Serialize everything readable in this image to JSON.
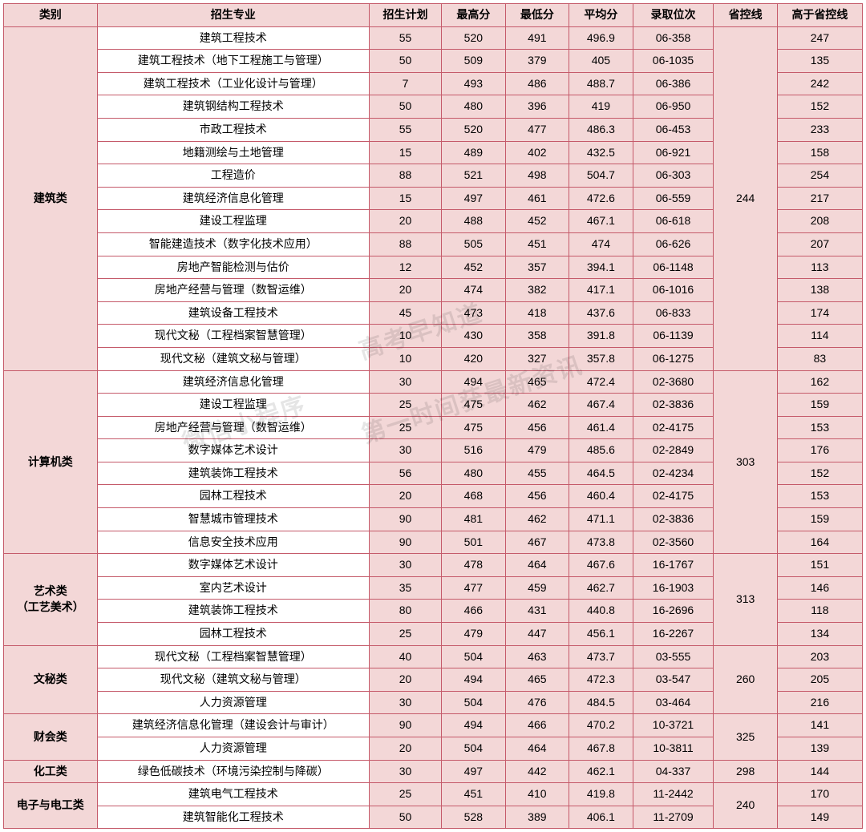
{
  "columns": [
    "类别",
    "招生专业",
    "招生计划",
    "最高分",
    "最低分",
    "平均分",
    "录取位次",
    "省控线",
    "高于省控线"
  ],
  "colClasses": [
    "col-cat",
    "col-major",
    "col-plan",
    "col-max",
    "col-min",
    "col-avg",
    "col-rank",
    "col-line",
    "col-diff"
  ],
  "watermark": [
    "高考早知道",
    "微信小程序",
    "第一时间获最新资讯"
  ],
  "groups": [
    {
      "category": "建筑类",
      "province_line": "244",
      "rows": [
        {
          "major": "建筑工程技术",
          "plan": "55",
          "max": "520",
          "min": "491",
          "avg": "496.9",
          "rank": "06-358",
          "diff": "247"
        },
        {
          "major": "建筑工程技术（地下工程施工与管理）",
          "plan": "50",
          "max": "509",
          "min": "379",
          "avg": "405",
          "rank": "06-1035",
          "diff": "135"
        },
        {
          "major": "建筑工程技术（工业化设计与管理）",
          "plan": "7",
          "max": "493",
          "min": "486",
          "avg": "488.7",
          "rank": "06-386",
          "diff": "242"
        },
        {
          "major": "建筑钢结构工程技术",
          "plan": "50",
          "max": "480",
          "min": "396",
          "avg": "419",
          "rank": "06-950",
          "diff": "152"
        },
        {
          "major": "市政工程技术",
          "plan": "55",
          "max": "520",
          "min": "477",
          "avg": "486.3",
          "rank": "06-453",
          "diff": "233"
        },
        {
          "major": "地籍测绘与土地管理",
          "plan": "15",
          "max": "489",
          "min": "402",
          "avg": "432.5",
          "rank": "06-921",
          "diff": "158"
        },
        {
          "major": "工程造价",
          "plan": "88",
          "max": "521",
          "min": "498",
          "avg": "504.7",
          "rank": "06-303",
          "diff": "254"
        },
        {
          "major": "建筑经济信息化管理",
          "plan": "15",
          "max": "497",
          "min": "461",
          "avg": "472.6",
          "rank": "06-559",
          "diff": "217"
        },
        {
          "major": "建设工程监理",
          "plan": "20",
          "max": "488",
          "min": "452",
          "avg": "467.1",
          "rank": "06-618",
          "diff": "208"
        },
        {
          "major": "智能建造技术（数字化技术应用）",
          "plan": "88",
          "max": "505",
          "min": "451",
          "avg": "474",
          "rank": "06-626",
          "diff": "207"
        },
        {
          "major": "房地产智能检测与估价",
          "plan": "12",
          "max": "452",
          "min": "357",
          "avg": "394.1",
          "rank": "06-1148",
          "diff": "113"
        },
        {
          "major": "房地产经营与管理（数智运维）",
          "plan": "20",
          "max": "474",
          "min": "382",
          "avg": "417.1",
          "rank": "06-1016",
          "diff": "138"
        },
        {
          "major": "建筑设备工程技术",
          "plan": "45",
          "max": "473",
          "min": "418",
          "avg": "437.6",
          "rank": "06-833",
          "diff": "174"
        },
        {
          "major": "现代文秘（工程档案智慧管理）",
          "plan": "10",
          "max": "430",
          "min": "358",
          "avg": "391.8",
          "rank": "06-1139",
          "diff": "114"
        },
        {
          "major": "现代文秘（建筑文秘与管理）",
          "plan": "10",
          "max": "420",
          "min": "327",
          "avg": "357.8",
          "rank": "06-1275",
          "diff": "83"
        }
      ]
    },
    {
      "category": "计算机类",
      "province_line": "303",
      "rows": [
        {
          "major": "建筑经济信息化管理",
          "plan": "30",
          "max": "494",
          "min": "465",
          "avg": "472.4",
          "rank": "02-3680",
          "diff": "162"
        },
        {
          "major": "建设工程监理",
          "plan": "25",
          "max": "475",
          "min": "462",
          "avg": "467.4",
          "rank": "02-3836",
          "diff": "159"
        },
        {
          "major": "房地产经营与管理（数智运维）",
          "plan": "25",
          "max": "475",
          "min": "456",
          "avg": "461.4",
          "rank": "02-4175",
          "diff": "153"
        },
        {
          "major": "数字媒体艺术设计",
          "plan": "30",
          "max": "516",
          "min": "479",
          "avg": "485.6",
          "rank": "02-2849",
          "diff": "176"
        },
        {
          "major": "建筑装饰工程技术",
          "plan": "56",
          "max": "480",
          "min": "455",
          "avg": "464.5",
          "rank": "02-4234",
          "diff": "152"
        },
        {
          "major": "园林工程技术",
          "plan": "20",
          "max": "468",
          "min": "456",
          "avg": "460.4",
          "rank": "02-4175",
          "diff": "153"
        },
        {
          "major": "智慧城市管理技术",
          "plan": "90",
          "max": "481",
          "min": "462",
          "avg": "471.1",
          "rank": "02-3836",
          "diff": "159"
        },
        {
          "major": "信息安全技术应用",
          "plan": "90",
          "max": "501",
          "min": "467",
          "avg": "473.8",
          "rank": "02-3560",
          "diff": "164"
        }
      ]
    },
    {
      "category": "艺术类\n（工艺美术）",
      "province_line": "313",
      "rows": [
        {
          "major": "数字媒体艺术设计",
          "plan": "30",
          "max": "478",
          "min": "464",
          "avg": "467.6",
          "rank": "16-1767",
          "diff": "151"
        },
        {
          "major": "室内艺术设计",
          "plan": "35",
          "max": "477",
          "min": "459",
          "avg": "462.7",
          "rank": "16-1903",
          "diff": "146"
        },
        {
          "major": "建筑装饰工程技术",
          "plan": "80",
          "max": "466",
          "min": "431",
          "avg": "440.8",
          "rank": "16-2696",
          "diff": "118"
        },
        {
          "major": "园林工程技术",
          "plan": "25",
          "max": "479",
          "min": "447",
          "avg": "456.1",
          "rank": "16-2267",
          "diff": "134"
        }
      ]
    },
    {
      "category": "文秘类",
      "province_line": "260",
      "rows": [
        {
          "major": "现代文秘（工程档案智慧管理）",
          "plan": "40",
          "max": "504",
          "min": "463",
          "avg": "473.7",
          "rank": "03-555",
          "diff": "203"
        },
        {
          "major": "现代文秘（建筑文秘与管理）",
          "plan": "20",
          "max": "494",
          "min": "465",
          "avg": "472.3",
          "rank": "03-547",
          "diff": "205"
        },
        {
          "major": "人力资源管理",
          "plan": "30",
          "max": "504",
          "min": "476",
          "avg": "484.5",
          "rank": "03-464",
          "diff": "216"
        }
      ]
    },
    {
      "category": "财会类",
      "province_line": "325",
      "rows": [
        {
          "major": "建筑经济信息化管理（建设会计与审计）",
          "plan": "90",
          "max": "494",
          "min": "466",
          "avg": "470.2",
          "rank": "10-3721",
          "diff": "141"
        },
        {
          "major": "人力资源管理",
          "plan": "20",
          "max": "504",
          "min": "464",
          "avg": "467.8",
          "rank": "10-3811",
          "diff": "139"
        }
      ]
    },
    {
      "category": "化工类",
      "province_line": "298",
      "rows": [
        {
          "major": "绿色低碳技术（环境污染控制与降碳）",
          "plan": "30",
          "max": "497",
          "min": "442",
          "avg": "462.1",
          "rank": "04-337",
          "diff": "144"
        }
      ]
    },
    {
      "category": "电子与电工类",
      "province_line": "240",
      "rows": [
        {
          "major": "建筑电气工程技术",
          "plan": "25",
          "max": "451",
          "min": "410",
          "avg": "419.8",
          "rank": "11-2442",
          "diff": "170"
        },
        {
          "major": "建筑智能化工程技术",
          "plan": "50",
          "max": "528",
          "min": "389",
          "avg": "406.1",
          "rank": "11-2709",
          "diff": "149"
        }
      ]
    }
  ]
}
